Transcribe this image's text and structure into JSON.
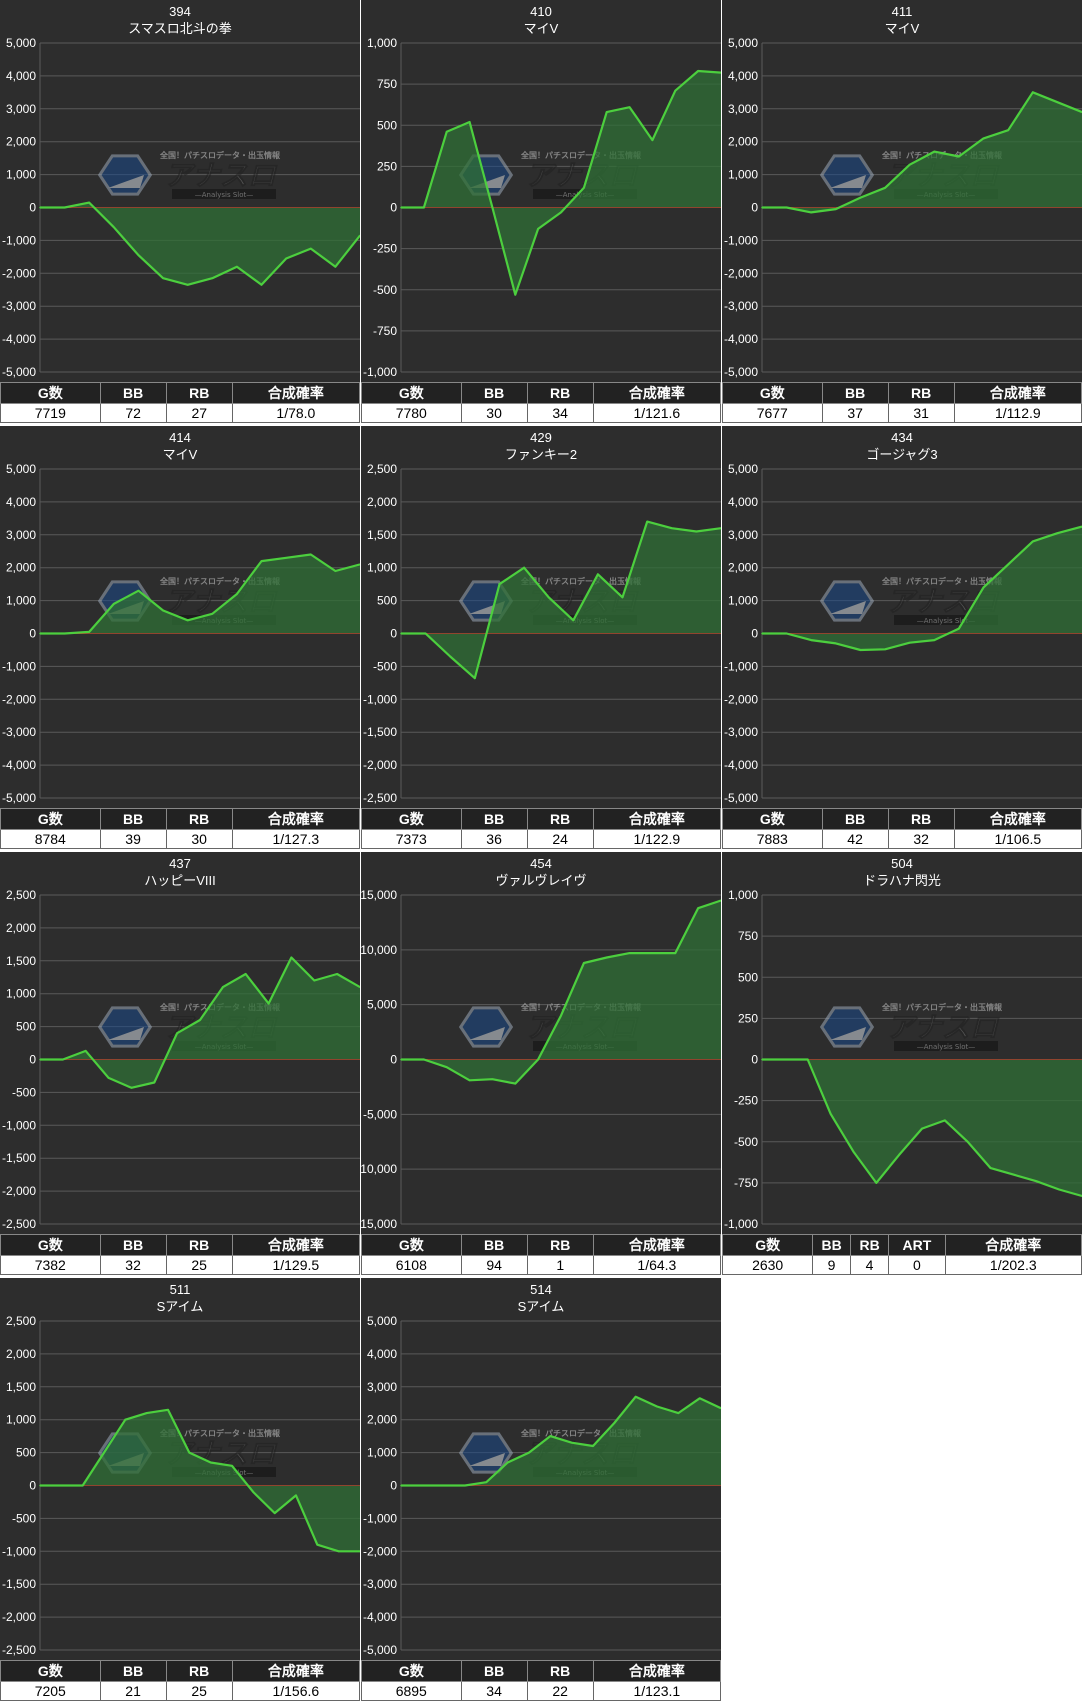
{
  "colors": {
    "panel_bg": "#2d2d2d",
    "grid": "#5a5a5a",
    "zero_line": "#cc2b2b",
    "series_line": "#4ccf3e",
    "area_fill": "#2f6f35",
    "text": "#ffffff"
  },
  "watermark": {
    "top": "全国！パチスロデータ・出玉情報",
    "logo": "アナスロ",
    "sub": "—Analysis Slot—"
  },
  "chart_data": [
    {
      "type": "area",
      "title": "394",
      "subtitle": "スマスロ北斗の拳",
      "ylim": [
        -5000,
        5000
      ],
      "yticks": [
        5000,
        4000,
        3000,
        2000,
        1000,
        0,
        -1000,
        -2000,
        -3000,
        -4000,
        -5000
      ],
      "ytick_labels": [
        "5,000",
        "4,000",
        "3,000",
        "2,000",
        "1,000",
        "0",
        "-1,000",
        "-2,000",
        "-3,000",
        "-4,000",
        "-5,000"
      ],
      "values": [
        0,
        0,
        150,
        -600,
        -1450,
        -2150,
        -2350,
        -2150,
        -1800,
        -2350,
        -1550,
        -1250,
        -1800,
        -850
      ],
      "stats_headers": [
        "G数",
        "BB",
        "RB",
        "合成確率"
      ],
      "stats_values": [
        "7719",
        "72",
        "27",
        "1/78.0"
      ]
    },
    {
      "type": "area",
      "title": "410",
      "subtitle": "マイV",
      "ylim": [
        -1000,
        1000
      ],
      "yticks": [
        1000,
        750,
        500,
        250,
        0,
        -250,
        -500,
        -750,
        -1000
      ],
      "ytick_labels": [
        "1,000",
        "750",
        "500",
        "250",
        "0",
        "-250",
        "-500",
        "-750",
        "-1,000"
      ],
      "values": [
        0,
        0,
        460,
        520,
        0,
        -530,
        -130,
        -30,
        120,
        580,
        610,
        410,
        710,
        830,
        820
      ],
      "stats_headers": [
        "G数",
        "BB",
        "RB",
        "合成確率"
      ],
      "stats_values": [
        "7780",
        "30",
        "34",
        "1/121.6"
      ]
    },
    {
      "type": "area",
      "title": "411",
      "subtitle": "マイV",
      "ylim": [
        -5000,
        5000
      ],
      "yticks": [
        5000,
        4000,
        3000,
        2000,
        1000,
        0,
        -1000,
        -2000,
        -3000,
        -4000,
        -5000
      ],
      "ytick_labels": [
        "5,000",
        "4,000",
        "3,000",
        "2,000",
        "1,000",
        "0",
        "-1,000",
        "-2,000",
        "-3,000",
        "-4,000",
        "-5,000"
      ],
      "values": [
        0,
        0,
        -150,
        -50,
        300,
        600,
        1300,
        1700,
        1550,
        2100,
        2350,
        3500,
        3200,
        2900
      ],
      "stats_headers": [
        "G数",
        "BB",
        "RB",
        "合成確率"
      ],
      "stats_values": [
        "7677",
        "37",
        "31",
        "1/112.9"
      ]
    },
    {
      "type": "area",
      "title": "414",
      "subtitle": "マイV",
      "ylim": [
        -5000,
        5000
      ],
      "yticks": [
        5000,
        4000,
        3000,
        2000,
        1000,
        0,
        -1000,
        -2000,
        -3000,
        -4000,
        -5000
      ],
      "ytick_labels": [
        "5,000",
        "4,000",
        "3,000",
        "2,000",
        "1,000",
        "0",
        "-1,000",
        "-2,000",
        "-3,000",
        "-4,000",
        "-5,000"
      ],
      "values": [
        0,
        0,
        50,
        900,
        1300,
        700,
        400,
        600,
        1200,
        2200,
        2300,
        2400,
        1900,
        2100
      ],
      "stats_headers": [
        "G数",
        "BB",
        "RB",
        "合成確率"
      ],
      "stats_values": [
        "8784",
        "39",
        "30",
        "1/127.3"
      ]
    },
    {
      "type": "area",
      "title": "429",
      "subtitle": "ファンキー2",
      "ylim": [
        -2500,
        2500
      ],
      "yticks": [
        2500,
        2000,
        1500,
        1000,
        500,
        0,
        -500,
        -1000,
        -1500,
        -2000,
        -2500
      ],
      "ytick_labels": [
        "2,500",
        "2,000",
        "1,500",
        "1,000",
        "500",
        "0",
        "-500",
        "-1,000",
        "-1,500",
        "-2,000",
        "-2,500"
      ],
      "values": [
        0,
        0,
        -350,
        -680,
        750,
        1000,
        550,
        200,
        900,
        550,
        1700,
        1600,
        1550,
        1600
      ],
      "stats_headers": [
        "G数",
        "BB",
        "RB",
        "合成確率"
      ],
      "stats_values": [
        "7373",
        "36",
        "24",
        "1/122.9"
      ]
    },
    {
      "type": "area",
      "title": "434",
      "subtitle": "ゴージャグ3",
      "ylim": [
        -5000,
        5000
      ],
      "yticks": [
        5000,
        4000,
        3000,
        2000,
        1000,
        0,
        -1000,
        -2000,
        -3000,
        -4000,
        -5000
      ],
      "ytick_labels": [
        "5,000",
        "4,000",
        "3,000",
        "2,000",
        "1,000",
        "0",
        "-1,000",
        "-2,000",
        "-3,000",
        "-4,000",
        "-5,000"
      ],
      "values": [
        0,
        0,
        -200,
        -300,
        -500,
        -480,
        -280,
        -200,
        150,
        1400,
        2100,
        2800,
        3050,
        3250
      ],
      "stats_headers": [
        "G数",
        "BB",
        "RB",
        "合成確率"
      ],
      "stats_values": [
        "7883",
        "42",
        "32",
        "1/106.5"
      ]
    },
    {
      "type": "area",
      "title": "437",
      "subtitle": "ハッピーVIII",
      "ylim": [
        -2500,
        2500
      ],
      "yticks": [
        2500,
        2000,
        1500,
        1000,
        500,
        0,
        -500,
        -1000,
        -1500,
        -2000,
        -2500
      ],
      "ytick_labels": [
        "2,500",
        "2,000",
        "1,500",
        "1,000",
        "500",
        "0",
        "-500",
        "-1,000",
        "-1,500",
        "-2,000",
        "-2,500"
      ],
      "values": [
        0,
        0,
        130,
        -280,
        -430,
        -350,
        400,
        600,
        1100,
        1300,
        850,
        1550,
        1200,
        1300,
        1100
      ],
      "stats_headers": [
        "G数",
        "BB",
        "RB",
        "合成確率"
      ],
      "stats_values": [
        "7382",
        "32",
        "25",
        "1/129.5"
      ]
    },
    {
      "type": "area",
      "title": "454",
      "subtitle": "ヴァルヴレイヴ",
      "ylim": [
        -15000,
        15000
      ],
      "yticks": [
        15000,
        10000,
        5000,
        0,
        -5000,
        -10000,
        -15000
      ],
      "ytick_labels": [
        "15,000",
        "10,000",
        "5,000",
        "0",
        "-5,000",
        "-10,000",
        "-15,000"
      ],
      "values": [
        0,
        0,
        -700,
        -1900,
        -1800,
        -2200,
        0,
        4000,
        8800,
        9300,
        9700,
        9700,
        9700,
        13800,
        14500
      ],
      "stats_headers": [
        "G数",
        "BB",
        "RB",
        "合成確率"
      ],
      "stats_values": [
        "6108",
        "94",
        "1",
        "1/64.3"
      ]
    },
    {
      "type": "area",
      "title": "504",
      "subtitle": "ドラハナ閃光",
      "ylim": [
        -1000,
        1000
      ],
      "yticks": [
        1000,
        750,
        500,
        250,
        0,
        -250,
        -500,
        -750,
        -1000
      ],
      "ytick_labels": [
        "1,000",
        "750",
        "500",
        "250",
        "0",
        "-250",
        "-500",
        "-750",
        "-1,000"
      ],
      "values": [
        0,
        0,
        0,
        -330,
        -560,
        -750,
        -580,
        -420,
        -370,
        -500,
        -660,
        -700,
        -740,
        -790,
        -830
      ],
      "stats_headers": [
        "G数",
        "BB",
        "RB",
        "ART",
        "合成確率"
      ],
      "stats_values": [
        "2630",
        "9",
        "4",
        "0",
        "1/202.3"
      ]
    },
    {
      "type": "area",
      "title": "511",
      "subtitle": "Sアイム",
      "ylim": [
        -2500,
        2500
      ],
      "yticks": [
        2500,
        2000,
        1500,
        1000,
        500,
        0,
        -500,
        -1000,
        -1500,
        -2000,
        -2500
      ],
      "ytick_labels": [
        "2,500",
        "2,000",
        "1,500",
        "1,000",
        "500",
        "0",
        "-500",
        "-1,000",
        "-1,500",
        "-2,000",
        "-2,500"
      ],
      "values": [
        0,
        0,
        0,
        500,
        1000,
        1100,
        1150,
        500,
        350,
        300,
        -100,
        -420,
        -150,
        -900,
        -1000,
        -1000
      ],
      "stats_headers": [
        "G数",
        "BB",
        "RB",
        "合成確率"
      ],
      "stats_values": [
        "7205",
        "21",
        "25",
        "1/156.6"
      ]
    },
    {
      "type": "area",
      "title": "514",
      "subtitle": "Sアイム",
      "ylim": [
        -5000,
        5000
      ],
      "yticks": [
        5000,
        4000,
        3000,
        2000,
        1000,
        0,
        -1000,
        -2000,
        -3000,
        -4000,
        -5000
      ],
      "ytick_labels": [
        "5,000",
        "4,000",
        "3,000",
        "2,000",
        "1,000",
        "0",
        "-1,000",
        "-2,000",
        "-3,000",
        "-4,000",
        "-5,000"
      ],
      "values": [
        0,
        0,
        0,
        0,
        100,
        700,
        1000,
        1500,
        1300,
        1200,
        1900,
        2700,
        2400,
        2200,
        2650,
        2350
      ],
      "stats_headers": [
        "G数",
        "BB",
        "RB",
        "合成確率"
      ],
      "stats_values": [
        "6895",
        "34",
        "22",
        "1/123.1"
      ]
    }
  ]
}
